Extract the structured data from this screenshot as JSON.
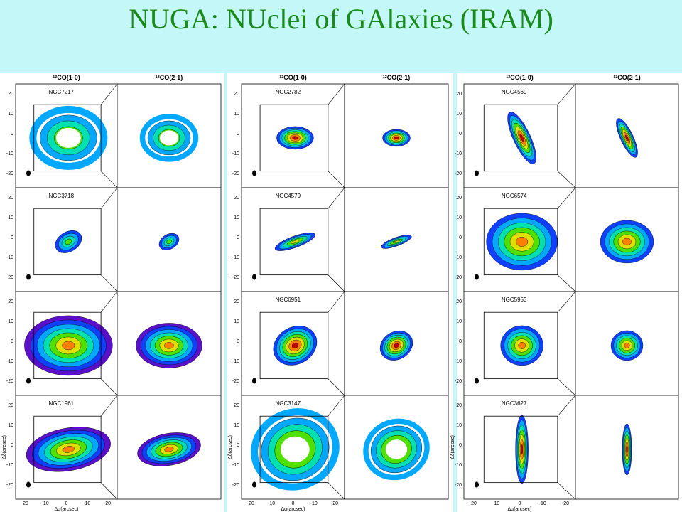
{
  "title": "NUGA: NUclei of GAlaxies (IRAM)",
  "axis": {
    "ticks": [
      "20",
      "10",
      "0",
      "-10",
      "-20"
    ],
    "xlabel": "Δα(arcsec)",
    "ylabel": "Δδ(arcsec)"
  },
  "panels": [
    {
      "columns": [
        "¹²CO(1-0)",
        "¹²CO(2-1)"
      ],
      "galaxies": [
        "NGC7217",
        "NGC3718",
        "NGC1961"
      ]
    },
    {
      "columns": [
        "¹²CO(1-0)",
        "¹²CO(2-1)"
      ],
      "galaxies": [
        "NGC2782",
        "NGC4579",
        "NGC6951",
        "NGC3147"
      ]
    },
    {
      "columns": [
        "¹²CO(1-0)",
        "¹²CO(2-1)"
      ],
      "galaxies": [
        "NGC4569",
        "NGC6574",
        "NGC5953",
        "NGC3627"
      ]
    }
  ]
}
